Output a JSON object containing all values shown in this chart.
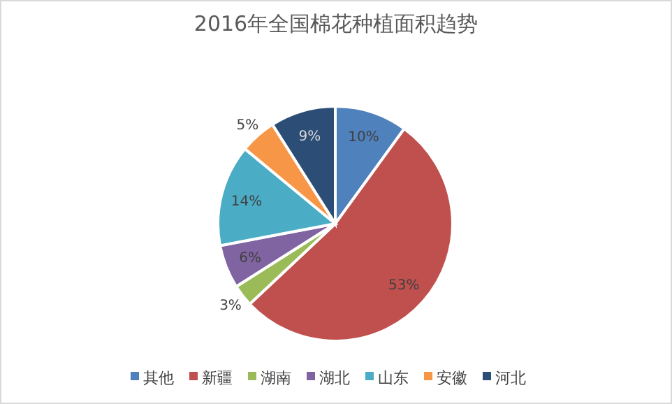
{
  "chart_data": {
    "type": "pie",
    "title": "2016年全国棉花种植面积趋势",
    "categories": [
      "其他",
      "新疆",
      "湖南",
      "湖北",
      "山东",
      "安徽",
      "河北"
    ],
    "values": [
      10,
      53,
      3,
      6,
      14,
      5,
      9
    ],
    "colors": [
      "#4f81bd",
      "#c0504d",
      "#9bbb59",
      "#8064a2",
      "#4bacc6",
      "#f79646",
      "#2c4d75"
    ],
    "value_labels": [
      "10%",
      "53%",
      "3%",
      "6%",
      "14%",
      "5%",
      "9%"
    ],
    "legend": "bottom"
  }
}
